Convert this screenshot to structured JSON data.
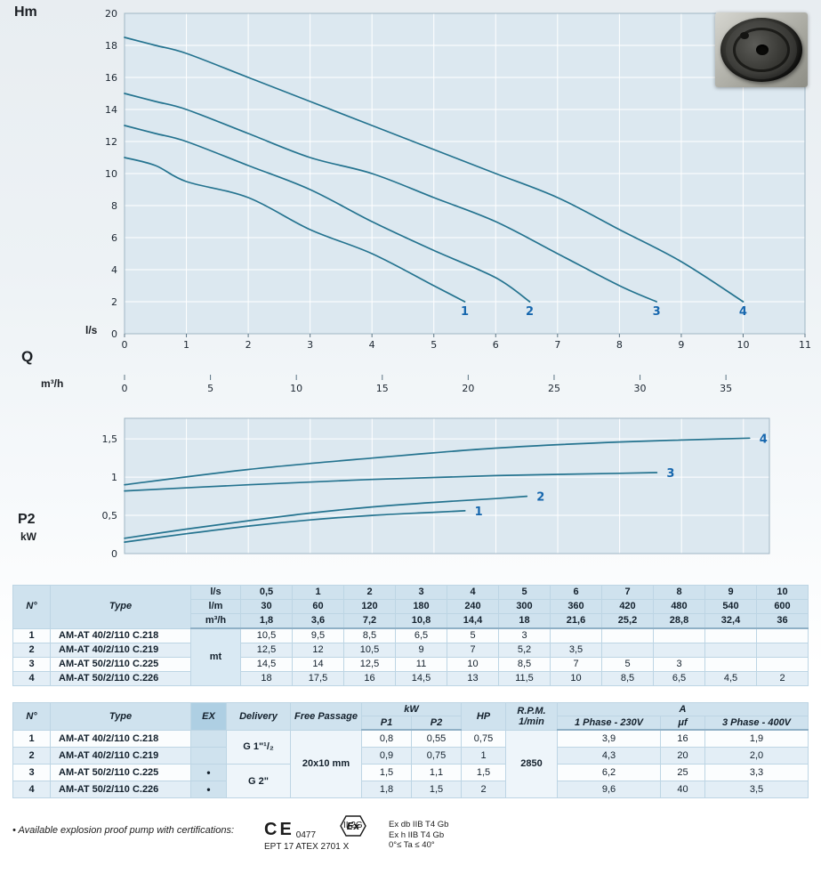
{
  "axis_labels": {
    "head_unit": "Hm",
    "flow_ls": "l/s",
    "flow_symbol": "Q",
    "flow_m3h": "m³/h",
    "power_symbol": "P2",
    "power_unit": "kW"
  },
  "colors": {
    "chart_bg": "#dce8f0",
    "grid": "#ffffff",
    "plot_border": "#9fb6c4",
    "curve": "#24738f",
    "curve_label": "#1767ae",
    "axis_text": "#1b2530",
    "table_header_bg": "#cfe2ee",
    "row_alt": "#e3eef6"
  },
  "chart_data": [
    {
      "name": "head-flow-curves",
      "type": "line",
      "title": "",
      "xlabel": "Q (l/s)",
      "ylabel": "Hm",
      "xlim": [
        0,
        11
      ],
      "ylim": [
        0,
        20
      ],
      "grid": true,
      "x_ticks": [
        0,
        1,
        2,
        3,
        4,
        5,
        6,
        7,
        8,
        9,
        10,
        11
      ],
      "y_ticks": [
        0,
        2,
        4,
        6,
        8,
        10,
        12,
        14,
        16,
        18,
        20
      ],
      "secondary_x_axis": {
        "label": "m³/h",
        "ticks": [
          0,
          5,
          10,
          15,
          20,
          25,
          30,
          35
        ],
        "scale_from_ls": 3.6
      },
      "series": [
        {
          "name": "1",
          "x": [
            0,
            0.5,
            1,
            2,
            3,
            4,
            5,
            5.5
          ],
          "y": [
            11,
            10.5,
            9.5,
            8.5,
            6.5,
            5,
            3,
            2
          ]
        },
        {
          "name": "2",
          "x": [
            0,
            0.5,
            1,
            2,
            3,
            4,
            5,
            6,
            6.55
          ],
          "y": [
            13,
            12.5,
            12,
            10.5,
            9,
            7,
            5.2,
            3.5,
            2
          ]
        },
        {
          "name": "3",
          "x": [
            0,
            0.5,
            1,
            2,
            3,
            4,
            5,
            6,
            7,
            8,
            8.6
          ],
          "y": [
            15,
            14.5,
            14,
            12.5,
            11,
            10,
            8.5,
            7,
            5,
            3,
            2
          ]
        },
        {
          "name": "4",
          "x": [
            0,
            0.5,
            1,
            2,
            3,
            4,
            5,
            6,
            7,
            8,
            9,
            10
          ],
          "y": [
            18.5,
            18,
            17.5,
            16,
            14.5,
            13,
            11.5,
            10,
            8.5,
            6.5,
            4.5,
            2
          ]
        }
      ]
    },
    {
      "name": "power-curves",
      "type": "line",
      "title": "",
      "xlabel": "Q (l/s)",
      "ylabel": "P2 kW",
      "xlim": [
        0,
        10.42
      ],
      "ylim": [
        0,
        1.77
      ],
      "grid": true,
      "x_grid_ticks": [
        1,
        2,
        3,
        4,
        5,
        6,
        7,
        8,
        9,
        10
      ],
      "y_ticks": [
        0,
        0.5,
        1,
        1.5
      ],
      "y_tick_labels": [
        "0",
        "0,5",
        "1",
        "1,5"
      ],
      "series": [
        {
          "name": "1",
          "x": [
            0,
            1,
            2,
            3,
            4,
            5,
            5.5
          ],
          "y": [
            0.15,
            0.26,
            0.36,
            0.44,
            0.5,
            0.54,
            0.56
          ]
        },
        {
          "name": "2",
          "x": [
            0,
            1,
            2,
            3,
            4,
            5,
            6,
            6.5
          ],
          "y": [
            0.2,
            0.32,
            0.43,
            0.53,
            0.61,
            0.67,
            0.72,
            0.75
          ]
        },
        {
          "name": "3",
          "x": [
            0,
            2,
            4,
            6,
            8,
            8.6
          ],
          "y": [
            0.82,
            0.9,
            0.97,
            1.02,
            1.05,
            1.06
          ]
        },
        {
          "name": "4",
          "x": [
            0,
            2,
            4,
            6,
            8,
            10.1
          ],
          "y": [
            0.9,
            1.1,
            1.25,
            1.38,
            1.46,
            1.51
          ]
        }
      ]
    }
  ],
  "table1": {
    "corner": {
      "n": "N°",
      "type": "Type",
      "unit": "mt"
    },
    "unit_rows": [
      {
        "label": "l/s",
        "values": [
          "0,5",
          "1",
          "2",
          "3",
          "4",
          "5",
          "6",
          "7",
          "8",
          "9",
          "10"
        ]
      },
      {
        "label": "l/m",
        "values": [
          "30",
          "60",
          "120",
          "180",
          "240",
          "300",
          "360",
          "420",
          "480",
          "540",
          "600"
        ]
      },
      {
        "label": "m³/h",
        "values": [
          "1,8",
          "3,6",
          "7,2",
          "10,8",
          "14,4",
          "18",
          "21,6",
          "25,2",
          "28,8",
          "32,4",
          "36"
        ]
      }
    ],
    "rows": [
      {
        "n": "1",
        "type": "AM-AT 40/2/110 C.218",
        "values": [
          "10,5",
          "9,5",
          "8,5",
          "6,5",
          "5",
          "3",
          "",
          "",
          "",
          "",
          ""
        ]
      },
      {
        "n": "2",
        "type": "AM-AT 40/2/110 C.219",
        "values": [
          "12,5",
          "12",
          "10,5",
          "9",
          "7",
          "5,2",
          "3,5",
          "",
          "",
          "",
          ""
        ]
      },
      {
        "n": "3",
        "type": "AM-AT 50/2/110 C.225",
        "values": [
          "14,5",
          "14",
          "12,5",
          "11",
          "10",
          "8,5",
          "7",
          "5",
          "3",
          "",
          ""
        ]
      },
      {
        "n": "4",
        "type": "AM-AT 50/2/110 C.226",
        "values": [
          "18",
          "17,5",
          "16",
          "14,5",
          "13",
          "11,5",
          "10",
          "8,5",
          "6,5",
          "4,5",
          "2"
        ]
      }
    ]
  },
  "table2": {
    "headers": {
      "n": "N°",
      "type": "Type",
      "ex": "EX",
      "delivery": "Delivery",
      "free_passage": "Free Passage",
      "kw": "kW",
      "p1": "P1",
      "p2": "P2",
      "hp": "HP",
      "rpm_line1": "R.P.M.",
      "rpm_line2": "1/min",
      "a": "A",
      "phase1": "1 Phase - 230V",
      "uf": "μf",
      "phase3": "3 Phase - 400V"
    },
    "delivery_groups": [
      {
        "label": "G 1\"¹/₂",
        "rows": 2
      },
      {
        "label": "G 2\"",
        "rows": 2
      }
    ],
    "free_passage": "20x10 mm",
    "rpm": "2850",
    "rows": [
      {
        "n": "1",
        "type": "AM-AT 40/2/110 C.218",
        "ex": "",
        "p1": "0,8",
        "p2": "0,55",
        "hp": "0,75",
        "phase1": "3,9",
        "uf": "16",
        "phase3": "1,9"
      },
      {
        "n": "2",
        "type": "AM-AT 40/2/110 C.219",
        "ex": "",
        "p1": "0,9",
        "p2": "0,75",
        "hp": "1",
        "phase1": "4,3",
        "uf": "20",
        "phase3": "2,0"
      },
      {
        "n": "3",
        "type": "AM-AT 50/2/110 C.225",
        "ex": "•",
        "p1": "1,5",
        "p2": "1,1",
        "hp": "1,5",
        "phase1": "6,2",
        "uf": "25",
        "phase3": "3,3"
      },
      {
        "n": "4",
        "type": "AM-AT 50/2/110 C.226",
        "ex": "•",
        "p1": "1,8",
        "p2": "1,5",
        "hp": "2",
        "phase1": "9,6",
        "uf": "40",
        "phase3": "3,5"
      }
    ]
  },
  "footer": {
    "note": "• Available explosion proof pump with certifications:",
    "ce_mark": "CE",
    "ce_number": "0477",
    "atex": "EPT 17 ATEX 2701 X",
    "ex_symbol": "Ex",
    "ex_class": "II 2G",
    "cert_lines": [
      "Ex db IIB T4 Gb",
      "Ex h IIB T4 Gb",
      "0°≤ Ta ≤ 40°"
    ]
  }
}
